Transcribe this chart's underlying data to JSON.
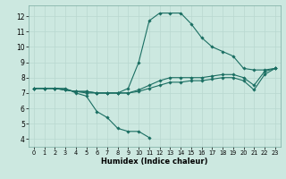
{
  "xlabel": "Humidex (Indice chaleur)",
  "xlim": [
    -0.5,
    23.5
  ],
  "ylim": [
    3.5,
    12.7
  ],
  "yticks": [
    4,
    5,
    6,
    7,
    8,
    9,
    10,
    11,
    12
  ],
  "xticks": [
    0,
    1,
    2,
    3,
    4,
    5,
    6,
    7,
    8,
    9,
    10,
    11,
    12,
    13,
    14,
    15,
    16,
    17,
    18,
    19,
    20,
    21,
    22,
    23
  ],
  "bg_color": "#cce8e0",
  "grid_color": "#b8d8d0",
  "line_color": "#1a6e62",
  "lines": [
    {
      "x": [
        0,
        1,
        2,
        3,
        4,
        5,
        6,
        7,
        8,
        9,
        10,
        11
      ],
      "y": [
        7.3,
        7.3,
        7.3,
        7.3,
        7.0,
        6.8,
        5.8,
        5.4,
        4.7,
        4.5,
        4.5,
        4.1
      ]
    },
    {
      "x": [
        0,
        1,
        2,
        3,
        4,
        5,
        6,
        7,
        8,
        9,
        10,
        11,
        12,
        13,
        14,
        15,
        16,
        17,
        18,
        19,
        20,
        21,
        22,
        23
      ],
      "y": [
        7.3,
        7.3,
        7.3,
        7.2,
        7.1,
        7.0,
        7.0,
        7.0,
        7.0,
        7.0,
        7.1,
        7.3,
        7.5,
        7.7,
        7.7,
        7.8,
        7.8,
        7.9,
        8.0,
        8.0,
        7.8,
        7.2,
        8.2,
        8.6
      ]
    },
    {
      "x": [
        0,
        1,
        2,
        3,
        4,
        5,
        6,
        7,
        8,
        9,
        10,
        11,
        12,
        13,
        14,
        15,
        16,
        17,
        18,
        19,
        20,
        21,
        22,
        23
      ],
      "y": [
        7.3,
        7.3,
        7.3,
        7.2,
        7.1,
        7.1,
        7.0,
        7.0,
        7.0,
        7.0,
        7.2,
        7.5,
        7.8,
        8.0,
        8.0,
        8.0,
        8.0,
        8.1,
        8.2,
        8.2,
        8.0,
        7.5,
        8.4,
        8.6
      ]
    },
    {
      "x": [
        0,
        1,
        2,
        3,
        4,
        5,
        6,
        7,
        8,
        9,
        10,
        11,
        12,
        13,
        14,
        15,
        16,
        17,
        18,
        19,
        20,
        21,
        22,
        23
      ],
      "y": [
        7.3,
        7.3,
        7.3,
        7.2,
        7.1,
        7.1,
        7.0,
        7.0,
        7.0,
        7.3,
        9.0,
        11.7,
        12.2,
        12.2,
        12.2,
        11.5,
        10.6,
        10.0,
        9.7,
        9.4,
        8.6,
        8.5,
        8.5,
        8.6
      ]
    }
  ]
}
